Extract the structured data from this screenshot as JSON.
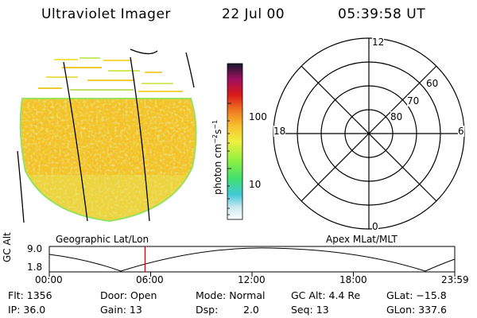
{
  "header": {
    "instrument": "Ultraviolet Imager",
    "date": "22 Jul 00",
    "time": "05:39:58 UT"
  },
  "colorbar": {
    "label_main": "photon cm",
    "label_exp1": "−2",
    "label_mid": "s",
    "label_exp2": "−1",
    "tick_high": "100",
    "tick_low": "10"
  },
  "panels": {
    "left_label": "Geographic Lat/Lon",
    "right_label": "Apex MLat/MLT"
  },
  "polar_plot": {
    "mlt_12": "12",
    "mlt_18": "18",
    "mlt_6": "6",
    "mlt_0": "0",
    "lat_60": "60",
    "lat_70": "70",
    "lat_80": "80"
  },
  "altitude_plot": {
    "y_axis_label": "GC Alt",
    "y_max": "9.0",
    "y_min": "1.8",
    "x_ticks": [
      "00:00",
      "06:00",
      "12:00",
      "18:00",
      "23:59"
    ],
    "current_time_fraction": 0.236
  },
  "footer": {
    "flt": "Flt: 1356",
    "ip": "IP: 36.0",
    "door": "Door: Open",
    "gain": "Gain: 13",
    "mode": "Mode: Normal",
    "dsp_label": "Dsp:",
    "dsp_value": "2.0",
    "gc_alt": "GC Alt: 4.4 Re",
    "seq": "Seq: 13",
    "glat": "GLat: −15.8",
    "glon": "GLon: 337.6"
  },
  "colors": {
    "image_base": "#f2c828",
    "image_edge": "#9ae05a",
    "marker": "#cc0000"
  }
}
